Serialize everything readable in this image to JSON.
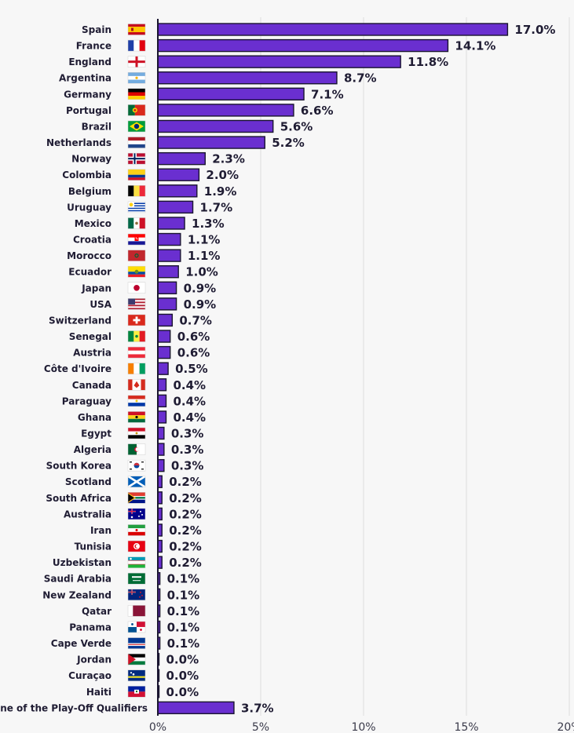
{
  "chart_data": {
    "type": "bar",
    "orientation": "horizontal",
    "title": "",
    "xlabel": "",
    "ylabel": "",
    "xlim": [
      0,
      20
    ],
    "x_ticks": [
      0,
      5,
      10,
      15,
      20
    ],
    "x_tick_labels": [
      "0%",
      "5%",
      "10%",
      "15%",
      "20%"
    ],
    "grid": true,
    "bar_color": "#6a2fd0",
    "categories": [
      "Spain",
      "France",
      "England",
      "Argentina",
      "Germany",
      "Portugal",
      "Brazil",
      "Netherlands",
      "Norway",
      "Colombia",
      "Belgium",
      "Uruguay",
      "Mexico",
      "Croatia",
      "Morocco",
      "Ecuador",
      "Japan",
      "USA",
      "Switzerland",
      "Senegal",
      "Austria",
      "Côte d'Ivoire",
      "Canada",
      "Paraguay",
      "Ghana",
      "Egypt",
      "Algeria",
      "South Korea",
      "Scotland",
      "South Africa",
      "Australia",
      "Iran",
      "Tunisia",
      "Uzbekistan",
      "Saudi Arabia",
      "New Zealand",
      "Qatar",
      "Panama",
      "Cape Verde",
      "Jordan",
      "Curaçao",
      "Haiti",
      "One of the Play-Off Qualifiers"
    ],
    "values": [
      17.0,
      14.1,
      11.8,
      8.7,
      7.1,
      6.6,
      5.6,
      5.2,
      2.3,
      2.0,
      1.9,
      1.7,
      1.3,
      1.1,
      1.1,
      1.0,
      0.9,
      0.9,
      0.7,
      0.6,
      0.6,
      0.5,
      0.4,
      0.4,
      0.4,
      0.3,
      0.3,
      0.3,
      0.2,
      0.2,
      0.2,
      0.2,
      0.2,
      0.2,
      0.1,
      0.1,
      0.1,
      0.1,
      0.1,
      0.0,
      0.0,
      0.0,
      3.7
    ],
    "value_labels": [
      "17.0%",
      "14.1%",
      "11.8%",
      "8.7%",
      "7.1%",
      "6.6%",
      "5.6%",
      "5.2%",
      "2.3%",
      "2.0%",
      "1.9%",
      "1.7%",
      "1.3%",
      "1.1%",
      "1.1%",
      "1.0%",
      "0.9%",
      "0.9%",
      "0.7%",
      "0.6%",
      "0.6%",
      "0.5%",
      "0.4%",
      "0.4%",
      "0.4%",
      "0.3%",
      "0.3%",
      "0.3%",
      "0.2%",
      "0.2%",
      "0.2%",
      "0.2%",
      "0.2%",
      "0.2%",
      "0.1%",
      "0.1%",
      "0.1%",
      "0.1%",
      "0.1%",
      "0.0%",
      "0.0%",
      "0.0%",
      "3.7%"
    ],
    "flag_icons": [
      "spain-flag-icon",
      "france-flag-icon",
      "england-flag-icon",
      "argentina-flag-icon",
      "germany-flag-icon",
      "portugal-flag-icon",
      "brazil-flag-icon",
      "netherlands-flag-icon",
      "norway-flag-icon",
      "colombia-flag-icon",
      "belgium-flag-icon",
      "uruguay-flag-icon",
      "mexico-flag-icon",
      "croatia-flag-icon",
      "morocco-flag-icon",
      "ecuador-flag-icon",
      "japan-flag-icon",
      "usa-flag-icon",
      "switzerland-flag-icon",
      "senegal-flag-icon",
      "austria-flag-icon",
      "cote-divoire-flag-icon",
      "canada-flag-icon",
      "paraguay-flag-icon",
      "ghana-flag-icon",
      "egypt-flag-icon",
      "algeria-flag-icon",
      "south-korea-flag-icon",
      "scotland-flag-icon",
      "south-africa-flag-icon",
      "australia-flag-icon",
      "iran-flag-icon",
      "tunisia-flag-icon",
      "uzbekistan-flag-icon",
      "saudi-arabia-flag-icon",
      "new-zealand-flag-icon",
      "qatar-flag-icon",
      "panama-flag-icon",
      "cape-verde-flag-icon",
      "jordan-flag-icon",
      "curacao-flag-icon",
      "haiti-flag-icon",
      ""
    ]
  }
}
